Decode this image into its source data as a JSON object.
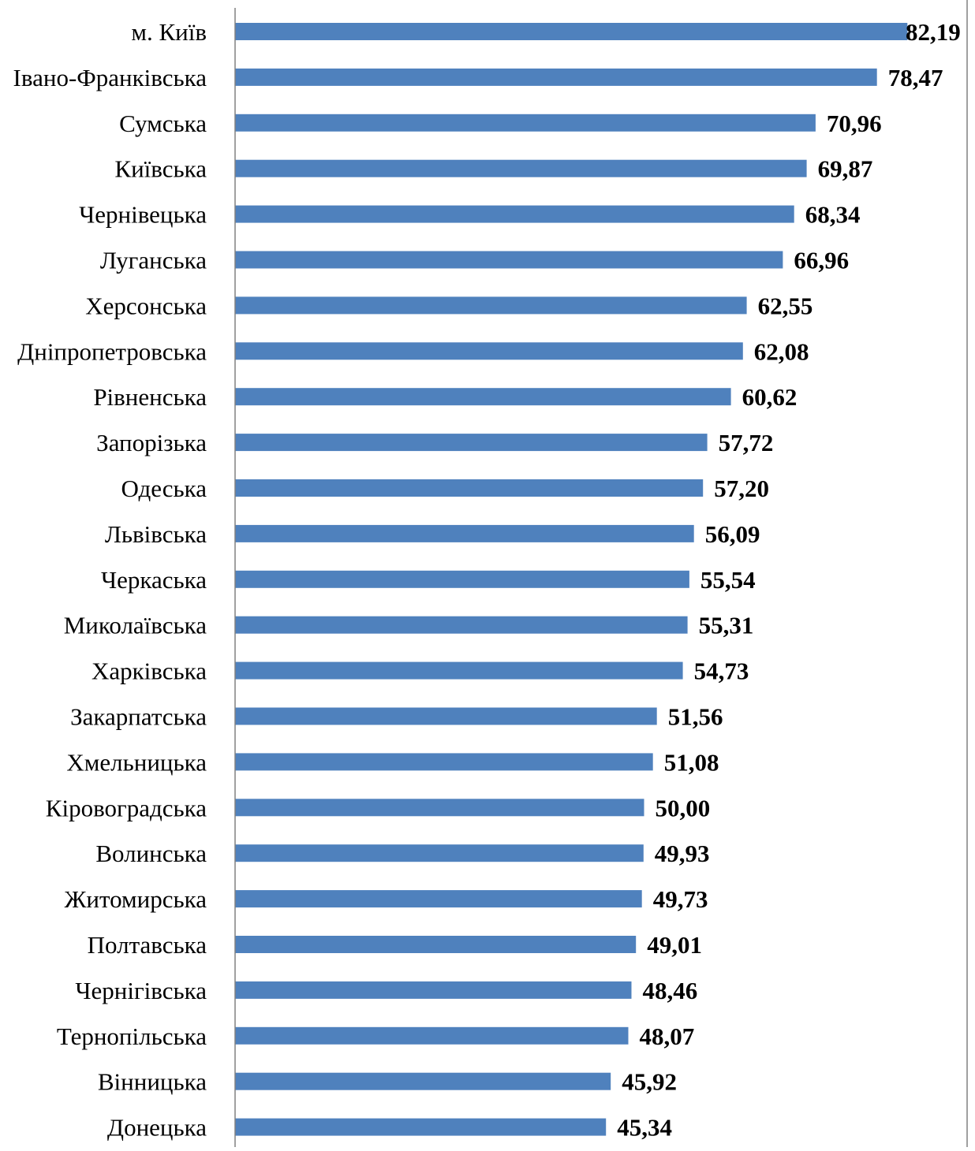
{
  "chart_data": {
    "type": "bar",
    "orientation": "horizontal",
    "categories": [
      "м. Київ",
      "Івано-Франківська",
      "Сумська",
      "Київська",
      "Чернівецька",
      "Луганська",
      "Херсонська",
      "Дніпропетровська",
      "Рівненська",
      "Запорізька",
      "Одеська",
      "Львівська",
      "Черкаська",
      "Миколаївська",
      "Харківська",
      "Закарпатська",
      "Хмельницька",
      "Кіровоградська",
      "Волинська",
      "Житомирська",
      "Полтавська",
      "Чернігівська",
      "Тернопільська",
      "Вінницька",
      "Донецька"
    ],
    "values": [
      82.19,
      78.47,
      70.96,
      69.87,
      68.34,
      66.96,
      62.55,
      62.08,
      60.62,
      57.72,
      57.2,
      56.09,
      55.54,
      55.31,
      54.73,
      51.56,
      51.08,
      50.0,
      49.93,
      49.73,
      49.01,
      48.46,
      48.07,
      45.92,
      45.34
    ],
    "data_labels": [
      "82,19",
      "78,47",
      "70,96",
      "69,87",
      "68,34",
      "66,96",
      "62,55",
      "62,08",
      "60,62",
      "57,72",
      "57,20",
      "56,09",
      "55,54",
      "55,31",
      "54,73",
      "51,56",
      "51,08",
      "50,00",
      "49,93",
      "49,73",
      "49,01",
      "48,46",
      "48,07",
      "45,92",
      "45,34"
    ],
    "xlim": [
      0,
      84
    ],
    "grid": false,
    "legend": "none",
    "bar_color": "#4F81BD",
    "axis_color": "#808080",
    "title": "",
    "xlabel": "",
    "ylabel": ""
  }
}
